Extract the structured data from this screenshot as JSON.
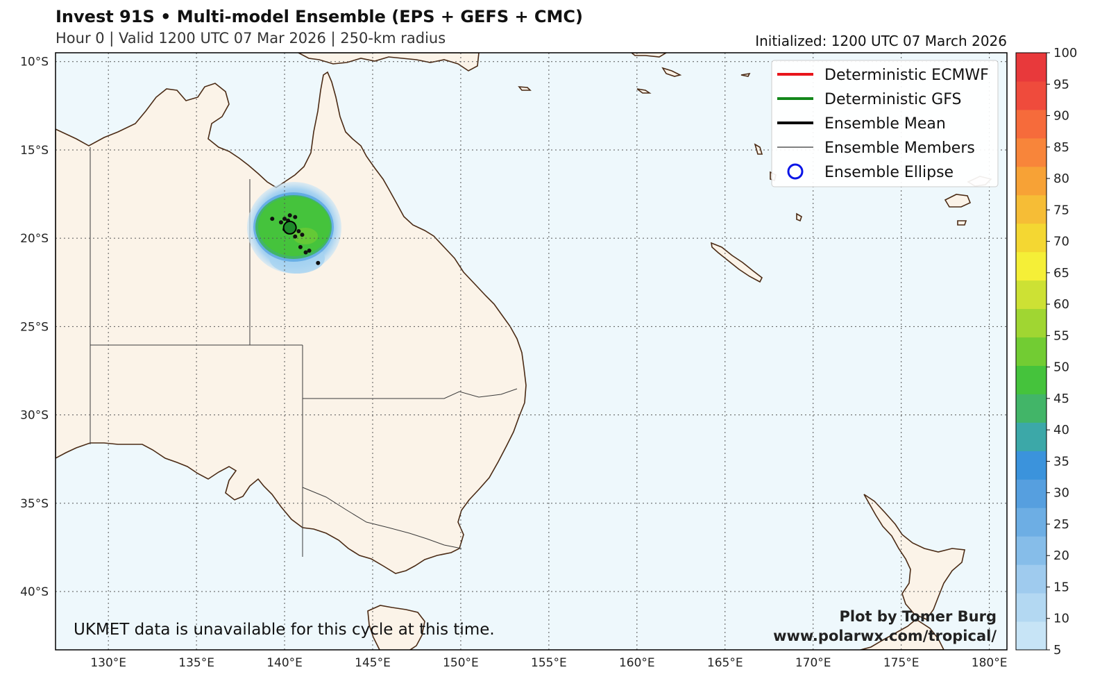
{
  "header": {
    "title": "Invest 91S • Multi-model Ensemble (EPS + GEFS + CMC)",
    "subtitle": "Hour 0 | Valid 1200 UTC 07 Mar 2026 | 250-km radius",
    "initialized": "Initialized: 1200 UTC 07 March 2026"
  },
  "map": {
    "lon_range": [
      127,
      181
    ],
    "lat_range": [
      -43.3,
      -9.5
    ],
    "lat_labels": [
      "10°S",
      "15°S",
      "20°S",
      "25°S",
      "30°S",
      "35°S",
      "40°S"
    ],
    "lat_values": [
      -10,
      -15,
      -20,
      -25,
      -30,
      -35,
      -40
    ],
    "lon_labels": [
      "130°E",
      "135°E",
      "140°E",
      "145°E",
      "150°E",
      "155°E",
      "160°E",
      "165°E",
      "170°E",
      "175°E",
      "180°E"
    ],
    "lon_values": [
      130,
      135,
      140,
      145,
      150,
      155,
      160,
      165,
      170,
      175,
      180
    ],
    "colors": {
      "ocean": "#eef8fc",
      "land": "#fbf3e8",
      "coast": "#4a2a14",
      "border": "#3a3a3a",
      "grid": "#555555"
    }
  },
  "legend": {
    "items": [
      {
        "label": "Deterministic ECMWF",
        "color": "#e8151b",
        "kind": "thick-line"
      },
      {
        "label": "Deterministic GFS",
        "color": "#13871a",
        "kind": "thick-line"
      },
      {
        "label": "Ensemble Mean",
        "color": "#000000",
        "kind": "thick-line"
      },
      {
        "label": "Ensemble Members",
        "color": "#000000",
        "kind": "thin-line"
      },
      {
        "label": "Ensemble Ellipse",
        "color": "#0a15e6",
        "kind": "circle"
      }
    ]
  },
  "chart_data": {
    "type": "map",
    "storm_center": {
      "lon": 140.3,
      "lat": -19.4
    },
    "ensemble_members": [
      {
        "lon": 140.0,
        "lat": -18.9
      },
      {
        "lon": 140.3,
        "lat": -18.7
      },
      {
        "lon": 140.6,
        "lat": -18.8
      },
      {
        "lon": 139.8,
        "lat": -19.1
      },
      {
        "lon": 140.1,
        "lat": -19.3
      },
      {
        "lon": 140.5,
        "lat": -19.2
      },
      {
        "lon": 140.0,
        "lat": -19.5
      },
      {
        "lon": 140.4,
        "lat": -19.5
      },
      {
        "lon": 140.8,
        "lat": -19.6
      },
      {
        "lon": 140.6,
        "lat": -19.9
      },
      {
        "lon": 141.0,
        "lat": -19.8
      },
      {
        "lon": 139.3,
        "lat": -18.9
      },
      {
        "lon": 140.9,
        "lat": -20.5
      },
      {
        "lon": 141.2,
        "lat": -20.8
      },
      {
        "lon": 141.4,
        "lat": -20.7
      },
      {
        "lon": 141.9,
        "lat": -21.4
      },
      {
        "lon": 140.2,
        "lat": -19.0
      }
    ],
    "probability_colorbar": {
      "label_values": [
        5,
        10,
        15,
        20,
        25,
        30,
        35,
        40,
        45,
        50,
        55,
        60,
        65,
        70,
        75,
        80,
        85,
        90,
        95,
        100
      ],
      "colors": [
        "#c7e4f6",
        "#b3d8f2",
        "#9fcbee",
        "#86bde9",
        "#6daee4",
        "#569fdf",
        "#3b93dc",
        "#3ca8a8",
        "#42b568",
        "#45c33c",
        "#72cc33",
        "#a0d632",
        "#cde134",
        "#f5ef37",
        "#f4d732",
        "#f6bd36",
        "#f7a236",
        "#f8853a",
        "#f66b3b",
        "#ef4b3c",
        "#e8393b"
      ]
    }
  },
  "notes": {
    "unavailable": "UKMET data is unavailable for this cycle at this time.",
    "credit_line1": "Plot by Tomer Burg",
    "credit_line2": "www.polarwx.com/tropical/"
  }
}
